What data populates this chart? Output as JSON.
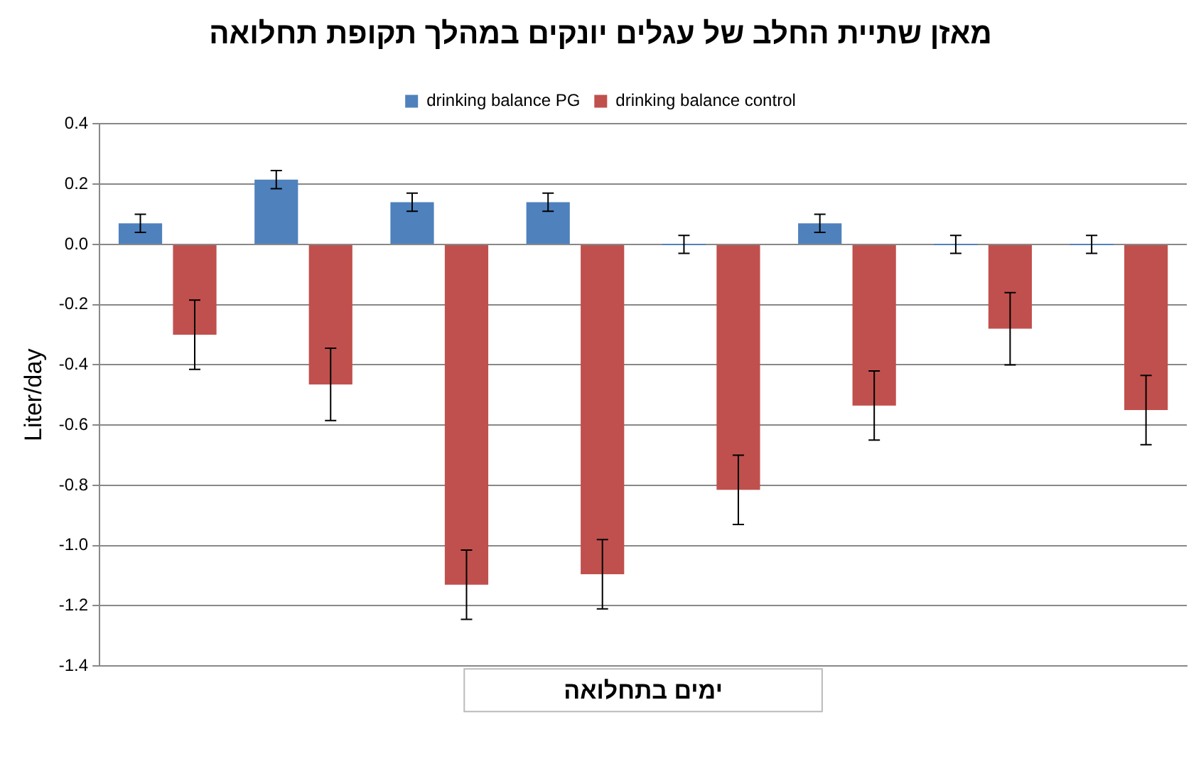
{
  "chart_data": {
    "type": "bar",
    "title": "מאזן שתיית החלב של עגלים יונקים במהלך תקופת תחלואה",
    "xlabel": "ימים בתחלואה",
    "ylabel": "Liter/day",
    "categories": [
      null,
      null,
      null,
      null,
      null,
      null,
      null,
      null
    ],
    "series": [
      {
        "name": "drinking balance PG",
        "color": "#4f81bd",
        "values": [
          0.07,
          0.215,
          0.14,
          0.14,
          0,
          0.07,
          0,
          0
        ],
        "errors": [
          0.03,
          0.03,
          0.03,
          0.03,
          0.03,
          0.03,
          0.03,
          0.03
        ]
      },
      {
        "name": "drinking balance control",
        "color": "#c0504d",
        "values": [
          -0.3,
          -0.465,
          -1.13,
          -1.095,
          -0.815,
          -0.535,
          -0.28,
          -0.55
        ],
        "errors": [
          0.115,
          0.12,
          0.115,
          0.115,
          0.115,
          0.115,
          0.12,
          0.115
        ]
      }
    ],
    "ylim": [
      -1.4,
      0.4
    ],
    "yticks": [
      {
        "value": -1.4,
        "label": "-1.4"
      },
      {
        "value": -1.2,
        "label": "-1.2"
      },
      {
        "value": -1,
        "label": "-1.0"
      },
      {
        "value": -0.8,
        "label": "-0.8"
      },
      {
        "value": -0.6,
        "label": "-0.6"
      },
      {
        "value": -0.4,
        "label": "-0.4"
      },
      {
        "value": -0.2,
        "label": "-0.2"
      },
      {
        "value": 0,
        "label": "0.0"
      },
      {
        "value": 0.2,
        "label": "0.2"
      },
      {
        "value": 0.4,
        "label": "0.4"
      }
    ],
    "grid": "y",
    "legend": "top"
  }
}
